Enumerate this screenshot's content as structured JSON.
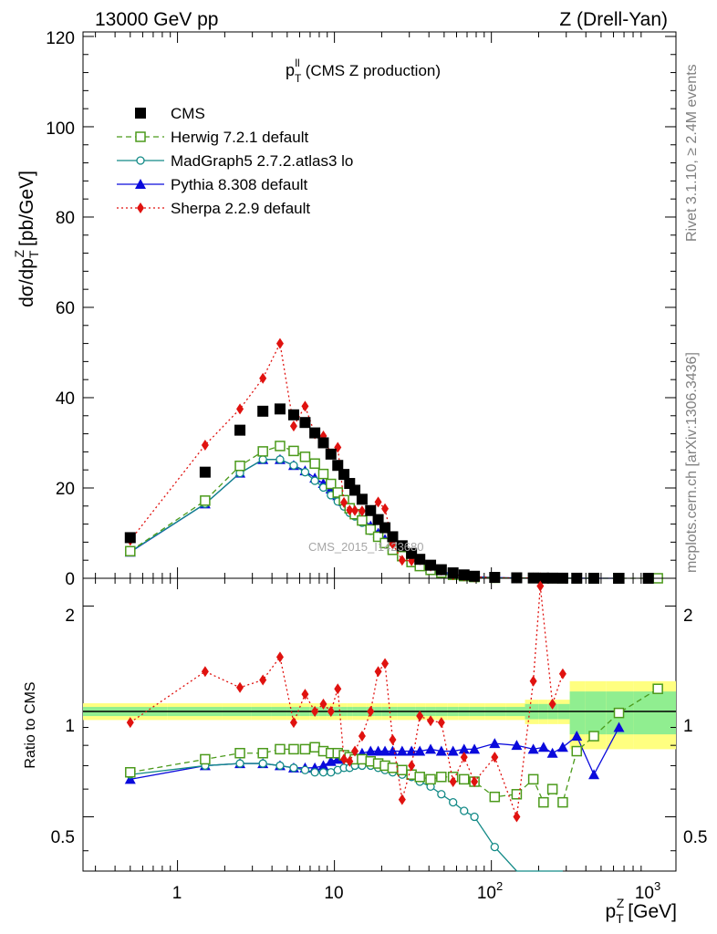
{
  "header": {
    "left": "13000 GeV pp",
    "right": "Z (Drell-Yan)",
    "plot_title_main": "p",
    "plot_title_sup": "ll",
    "plot_title_sub": "T",
    "plot_title_rest": "(CMS Z production)",
    "watermark": "CMS_2015_I1423680",
    "side_label_top": "Rivet 3.1.10, ≥ 2.4M events",
    "side_label_bottom": "mcplots.cern.ch [arXiv:1306.3436]"
  },
  "top_panel": {
    "ylabel": "dσ/dp",
    "ylabel_sup": "Z",
    "ylabel_sub": "T",
    "ylabel_unit": "[pb/GeV]",
    "yticks": [
      "0",
      "20",
      "40",
      "60",
      "80",
      "100",
      "120"
    ]
  },
  "bottom_panel": {
    "ylabel": "Ratio to CMS",
    "yticks_left": [
      "0.5",
      "1",
      "2"
    ],
    "yticks_right": [
      "0.5",
      "1",
      "2"
    ]
  },
  "x_axis": {
    "label": "p",
    "label_sup": "Z",
    "label_sub": "T",
    "label_unit": "[GeV]",
    "tick_1": "1",
    "tick_10": "10",
    "tick_100_base": "10",
    "tick_100_exp": "2",
    "tick_1000_base": "10",
    "tick_1000_exp": "3"
  },
  "legend": [
    {
      "name": "CMS",
      "color": "#000000",
      "marker": "square-filled",
      "line": "none"
    },
    {
      "name": "Herwig 7.2.1 default",
      "color": "#4b9a1b",
      "marker": "square-open",
      "line": "dashed"
    },
    {
      "name": "MadGraph5 2.7.2.atlas3 lo",
      "color": "#138a87",
      "marker": "circle-open",
      "line": "solid"
    },
    {
      "name": "Pythia 8.308 default",
      "color": "#0a0adc",
      "marker": "triangle-filled",
      "line": "solid"
    },
    {
      "name": "Sherpa 2.2.9 default",
      "color": "#e0120f",
      "marker": "diamond-filled",
      "line": "dotted"
    }
  ],
  "chart_data": {
    "type": "line",
    "x_scale": "log",
    "xlim": [
      0.25,
      1500
    ],
    "top_ylim": [
      0,
      121
    ],
    "ratio_ylim": [
      0.35,
      2.4
    ],
    "ratio_scale": "log",
    "series": [
      {
        "name": "CMS",
        "x": [
          0.5,
          1.5,
          2.5,
          3.5,
          4.5,
          5.5,
          6.5,
          7.5,
          8.5,
          9.5,
          10.5,
          11.5,
          12.5,
          13.5,
          15,
          17,
          19,
          21,
          23.5,
          27,
          31,
          35,
          41,
          48,
          57,
          67,
          78,
          105,
          145,
          185,
          215,
          245,
          285,
          350,
          450,
          650,
          1000
        ],
        "y": [
          9.0,
          23.5,
          32.8,
          37.0,
          37.5,
          36.2,
          34.5,
          32.2,
          30.0,
          27.5,
          25.0,
          23.0,
          21.0,
          19.5,
          17.5,
          15.0,
          13.0,
          11.2,
          9.2,
          7.2,
          5.5,
          4.2,
          2.9,
          1.9,
          1.2,
          0.75,
          0.45,
          0.2,
          0.1,
          0.06,
          0.045,
          0.035,
          0.025,
          0.015,
          0.008,
          0.004,
          0.0015
        ]
      },
      {
        "name": "Herwig 7.2.1 default",
        "x": [
          0.5,
          1.5,
          2.5,
          3.5,
          4.5,
          5.5,
          6.5,
          7.5,
          8.5,
          9.5,
          10.5,
          11.5,
          12.5,
          13.5,
          15,
          17,
          19,
          21,
          23.5,
          27,
          31,
          35,
          41,
          48,
          57,
          67,
          78,
          105,
          145,
          185,
          215,
          245,
          285,
          350,
          450,
          650,
          1150
        ],
        "ratio": [
          0.67,
          0.73,
          0.76,
          0.76,
          0.78,
          0.78,
          0.78,
          0.79,
          0.77,
          0.76,
          0.76,
          0.75,
          0.74,
          0.73,
          0.73,
          0.72,
          0.71,
          0.7,
          0.69,
          0.68,
          0.66,
          0.65,
          0.64,
          0.65,
          0.65,
          0.64,
          0.63,
          0.57,
          0.58,
          0.64,
          0.55,
          0.6,
          0.55,
          0.77,
          0.85,
          0.99,
          1.16
        ],
        "y": [
          6.0,
          17.2,
          24.9,
          28.1,
          29.3,
          28.2,
          26.9,
          25.4,
          23.1,
          20.9,
          19.0,
          17.3,
          15.5,
          14.2,
          12.8,
          10.8,
          9.2,
          7.8,
          6.3,
          4.9,
          3.6,
          2.7,
          1.86,
          1.24,
          0.78,
          0.48,
          0.28,
          0.11,
          0.06,
          0.04,
          0.025,
          0.021,
          0.014,
          0.012,
          0.007,
          0.004,
          0.0017
        ]
      },
      {
        "name": "MadGraph5 2.7.2.atlas3 lo",
        "x": [
          0.5,
          1.5,
          2.5,
          3.5,
          4.5,
          5.5,
          6.5,
          7.5,
          8.5,
          9.5,
          10.5,
          11.5,
          12.5,
          13.5,
          15,
          17,
          19,
          21,
          23.5,
          27,
          31,
          35,
          41,
          48,
          57,
          67,
          78,
          105,
          145,
          185,
          215,
          245,
          285
        ],
        "ratio": [
          0.66,
          0.7,
          0.71,
          0.71,
          0.7,
          0.69,
          0.68,
          0.67,
          0.67,
          0.67,
          0.68,
          0.69,
          0.69,
          0.7,
          0.7,
          0.7,
          0.69,
          0.68,
          0.67,
          0.66,
          0.65,
          0.63,
          0.61,
          0.58,
          0.55,
          0.52,
          0.5,
          0.41,
          0.32,
          0.26,
          0.23,
          0.2,
          0.17
        ],
        "y": [
          5.9,
          16.5,
          23.3,
          26.3,
          26.3,
          25.0,
          23.5,
          21.6,
          20.1,
          18.4,
          17.0,
          15.9,
          14.5,
          13.7,
          12.3,
          10.5,
          9.0,
          7.6,
          6.2,
          4.8,
          3.6,
          2.6,
          1.8,
          1.1,
          0.66,
          0.39,
          0.22,
          0.08,
          0.03,
          0.016,
          0.01,
          0.007,
          0.004
        ]
      },
      {
        "name": "Pythia 8.308 default",
        "x": [
          0.5,
          1.5,
          2.5,
          3.5,
          4.5,
          5.5,
          6.5,
          7.5,
          8.5,
          9.5,
          10.5,
          11.5,
          12.5,
          13.5,
          15,
          17,
          19,
          21,
          23.5,
          27,
          31,
          35,
          41,
          48,
          57,
          67,
          78,
          105,
          145,
          185,
          215,
          245,
          285,
          350,
          450,
          650
        ],
        "ratio": [
          0.64,
          0.7,
          0.71,
          0.71,
          0.7,
          0.69,
          0.69,
          0.69,
          0.7,
          0.72,
          0.73,
          0.74,
          0.74,
          0.75,
          0.76,
          0.77,
          0.77,
          0.77,
          0.77,
          0.77,
          0.77,
          0.77,
          0.78,
          0.77,
          0.77,
          0.78,
          0.78,
          0.81,
          0.8,
          0.78,
          0.79,
          0.76,
          0.79,
          0.85,
          0.66,
          0.9
        ],
        "y": [
          5.8,
          16.5,
          23.3,
          26.3,
          26.3,
          25.0,
          23.8,
          22.2,
          21.0,
          19.8,
          18.3,
          17.0,
          15.5,
          14.6,
          13.3,
          11.6,
          10.0,
          8.6,
          7.1,
          5.5,
          4.2,
          3.2,
          2.3,
          1.5,
          0.92,
          0.58,
          0.35,
          0.16,
          0.08,
          0.047,
          0.036,
          0.027,
          0.02,
          0.013,
          0.005,
          0.0036
        ]
      },
      {
        "name": "Sherpa 2.2.9 default",
        "x": [
          0.5,
          1.5,
          2.5,
          3.5,
          4.5,
          5.5,
          6.5,
          7.5,
          8.5,
          9.5,
          10.5,
          11.5,
          12.5,
          13.5,
          15,
          17,
          19,
          21,
          23.5,
          27,
          31,
          35,
          41,
          48,
          57,
          67,
          78,
          105,
          145,
          185,
          205,
          245,
          285
        ],
        "ratio": [
          0.93,
          1.3,
          1.17,
          1.23,
          1.43,
          0.93,
          1.12,
          1.0,
          1.05,
          1.0,
          1.16,
          0.73,
          0.72,
          0.77,
          0.85,
          1.0,
          1.3,
          1.37,
          0.83,
          0.56,
          0.7,
          0.97,
          0.94,
          0.93,
          0.63,
          0.74,
          0.63,
          0.74,
          0.5,
          1.22,
          2.28,
          1.05,
          1.28
        ],
        "y": [
          8.4,
          29.5,
          37.5,
          44.3,
          52.0,
          33.7,
          38.1,
          32.0,
          31.5,
          27.5,
          29.0,
          16.8,
          15.1,
          15.0,
          14.9,
          15.0,
          16.9,
          15.4,
          7.6,
          4.0,
          3.9,
          4.1,
          2.7,
          1.8,
          0.76,
          0.56,
          0.28,
          0.15,
          0.05,
          0.07,
          0.1,
          0.037,
          0.032
        ]
      }
    ]
  }
}
